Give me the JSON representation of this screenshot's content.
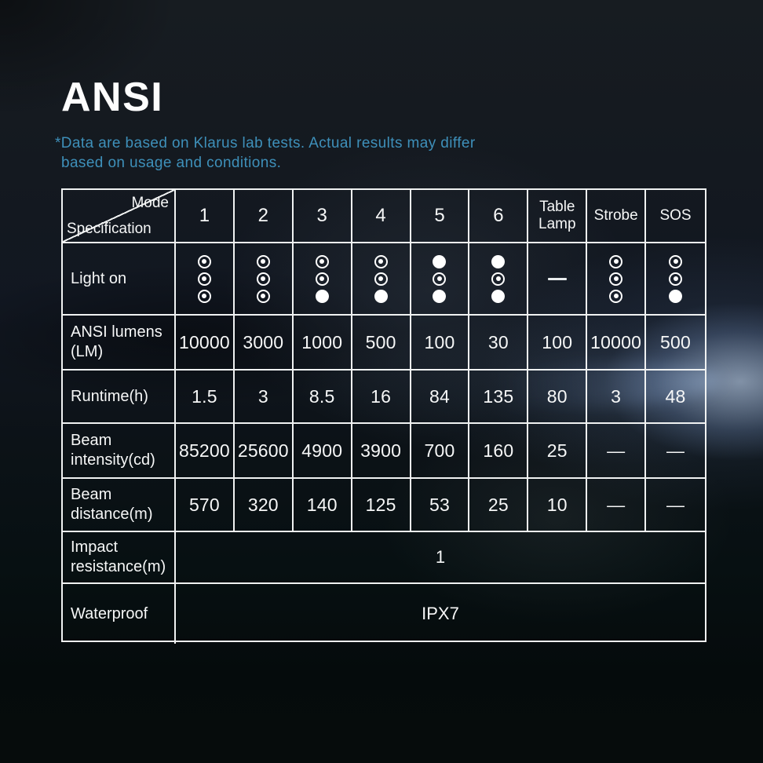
{
  "header": {
    "title": "ANSI",
    "disclaimer_line1": "*Data are based on Klarus lab tests. Actual results may differ",
    "disclaimer_line2": "based on usage and conditions."
  },
  "colors": {
    "accent_blue": "#3e90ba",
    "table_border": "#f0f2f2",
    "text_white": "#f6f7f7"
  },
  "table": {
    "corner": {
      "top": "Mode",
      "bottom": "Specification"
    },
    "modes": [
      "1",
      "2",
      "3",
      "4",
      "5",
      "6",
      "Table Lamp",
      "Strobe",
      "SOS"
    ],
    "light_on": {
      "label": "Light on",
      "cells": [
        [
          "ring",
          "ring",
          "ring"
        ],
        [
          "ring",
          "ring",
          "ring"
        ],
        [
          "ring",
          "ring",
          "dot"
        ],
        [
          "ring",
          "ring",
          "dot"
        ],
        [
          "dot",
          "ring",
          "dot"
        ],
        [
          "dot",
          "ring",
          "dot"
        ],
        [
          "dash"
        ],
        [
          "ring",
          "ring",
          "ring"
        ],
        [
          "ring",
          "ring",
          "dot"
        ]
      ]
    },
    "rows": [
      {
        "label": "ANSI lumens (LM)",
        "values": [
          "10000",
          "3000",
          "1000",
          "500",
          "100",
          "30",
          "100",
          "10000",
          "500"
        ]
      },
      {
        "label": "Runtime(h)",
        "values": [
          "1.5",
          "3",
          "8.5",
          "16",
          "84",
          "135",
          "80",
          "3",
          "48"
        ]
      },
      {
        "label": "Beam intensity(cd)",
        "values": [
          "85200",
          "25600",
          "4900",
          "3900",
          "700",
          "160",
          "25",
          "—",
          "—"
        ]
      },
      {
        "label": "Beam distance(m)",
        "values": [
          "570",
          "320",
          "140",
          "125",
          "53",
          "25",
          "10",
          "—",
          "—"
        ]
      }
    ],
    "span_rows": [
      {
        "label": "Impact resistance(m)",
        "value": "1"
      },
      {
        "label": "Waterproof",
        "value": "IPX7"
      }
    ]
  }
}
